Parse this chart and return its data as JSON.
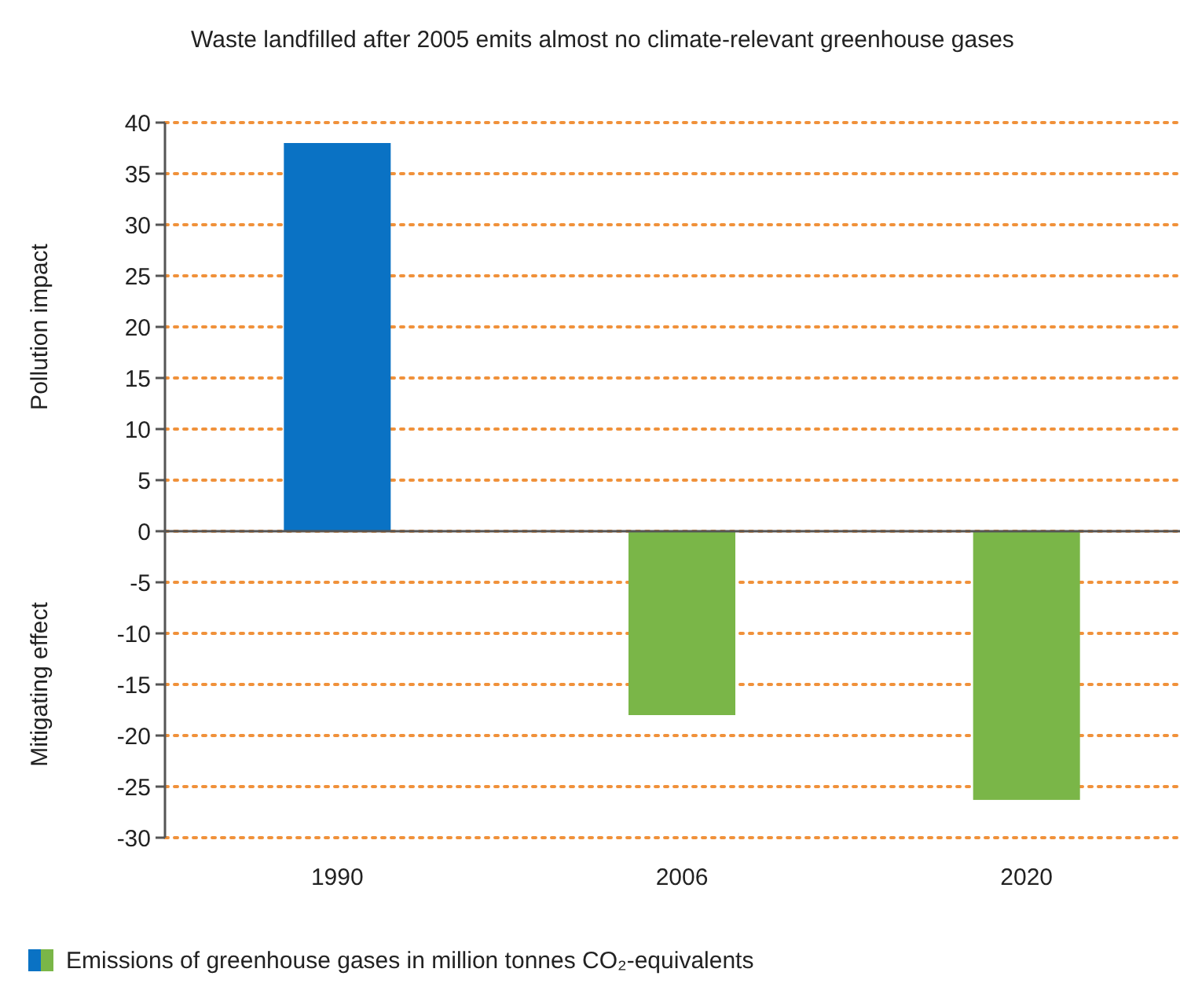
{
  "chart_data": {
    "type": "bar",
    "title": "Waste landfilled after 2005 emits almost no climate-relevant greenhouse gases",
    "ylabel": "Pollution impact",
    "annotations": [
      "Mitigating effect"
    ],
    "categories": [
      "1990",
      "2006",
      "2020"
    ],
    "series": [
      {
        "name": "Emissions of greenhouse gases in million tonnes CO₂-equivalents",
        "colors": [
          "#0a72c4",
          "#7ab648",
          "#7ab648"
        ],
        "values": [
          38,
          -18,
          -26.3
        ]
      }
    ],
    "ylim": [
      -30,
      40
    ],
    "yticks": [
      -30,
      -25,
      -20,
      -15,
      -10,
      -5,
      0,
      5,
      10,
      15,
      20,
      25,
      30,
      35,
      40
    ],
    "grid": "y",
    "legend": "bottom"
  }
}
